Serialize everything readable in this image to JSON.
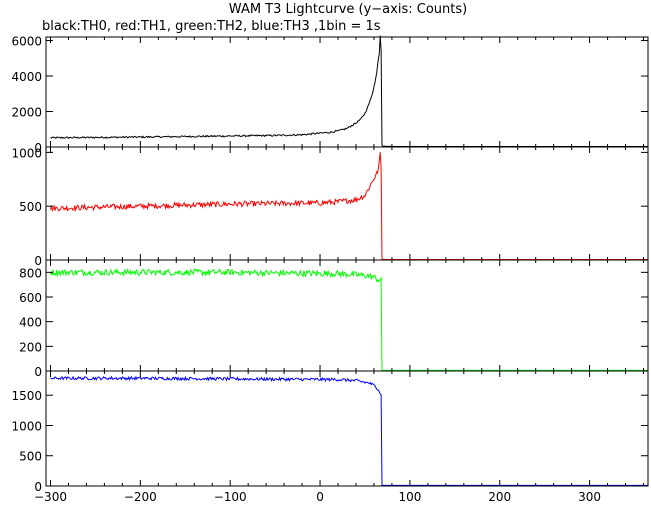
{
  "chart_data": {
    "type": "line",
    "title": "WAM T3 Lightcurve (y−axis: Counts)",
    "subtitle": "black:TH0, red:TH1, green:TH2, blue:TH3 ,1bin = 1s",
    "xlabel": "",
    "xlim": [
      -305,
      365
    ],
    "x_ticks": [
      -300,
      -200,
      -100,
      0,
      100,
      200,
      300
    ],
    "x_tick_labels": [
      "−300",
      "−200",
      "−100",
      "0",
      "100",
      "200",
      "300"
    ],
    "grid": false,
    "panels": [
      {
        "name": "TH0",
        "color": "#000000",
        "ylim": [
          0,
          6200
        ],
        "y_ticks": [
          0,
          2000,
          4000,
          6000
        ],
        "y_tick_labels": [
          "0",
          "2000",
          "4000",
          "6000"
        ],
        "x": [
          -300,
          -200,
          -100,
          -50,
          -20,
          0,
          10,
          20,
          30,
          35,
          40,
          45,
          50,
          55,
          58,
          61,
          63,
          64,
          65,
          66,
          67,
          68,
          69,
          70,
          80,
          100,
          200,
          300,
          365
        ],
        "y": [
          520,
          560,
          620,
          650,
          690,
          780,
          820,
          900,
          1050,
          1200,
          1350,
          1550,
          1900,
          2500,
          3000,
          3600,
          4200,
          4600,
          5000,
          5300,
          6300,
          5500,
          100,
          40,
          30,
          30,
          30,
          30,
          30
        ],
        "noise": 45
      },
      {
        "name": "TH1",
        "color": "#ff0000",
        "ylim": [
          0,
          1050
        ],
        "y_ticks": [
          0,
          500,
          1000
        ],
        "y_tick_labels": [
          "0",
          "500",
          "1000"
        ],
        "x": [
          -300,
          -200,
          -100,
          0,
          20,
          40,
          50,
          55,
          60,
          63,
          65,
          66,
          67,
          68,
          69,
          70,
          100,
          200,
          300,
          365
        ],
        "y": [
          480,
          500,
          520,
          530,
          540,
          560,
          600,
          680,
          760,
          800,
          850,
          900,
          1000,
          850,
          10,
          5,
          5,
          5,
          5,
          5
        ],
        "noise": 25
      },
      {
        "name": "TH2",
        "color": "#00ff00",
        "ylim": [
          0,
          900
        ],
        "y_ticks": [
          0,
          200,
          400,
          600,
          800
        ],
        "y_tick_labels": [
          "0",
          "200",
          "400",
          "600",
          "800"
        ],
        "x": [
          -300,
          -200,
          -100,
          0,
          20,
          40,
          55,
          60,
          65,
          68,
          69,
          70,
          100,
          200,
          300,
          365
        ],
        "y": [
          800,
          800,
          800,
          790,
          790,
          780,
          770,
          760,
          740,
          730,
          5,
          5,
          5,
          5,
          5,
          5
        ],
        "noise": 25
      },
      {
        "name": "TH3",
        "color": "#0000ff",
        "ylim": [
          0,
          1900
        ],
        "y_ticks": [
          0,
          500,
          1000,
          1500
        ],
        "y_tick_labels": [
          "0",
          "500",
          "1000",
          "1500"
        ],
        "x": [
          -300,
          -200,
          -100,
          0,
          20,
          40,
          55,
          60,
          65,
          68,
          69,
          70,
          100,
          200,
          300,
          365
        ],
        "y": [
          1780,
          1780,
          1770,
          1760,
          1760,
          1740,
          1700,
          1660,
          1600,
          1500,
          10,
          10,
          10,
          10,
          10,
          10
        ],
        "noise": 25
      }
    ]
  }
}
